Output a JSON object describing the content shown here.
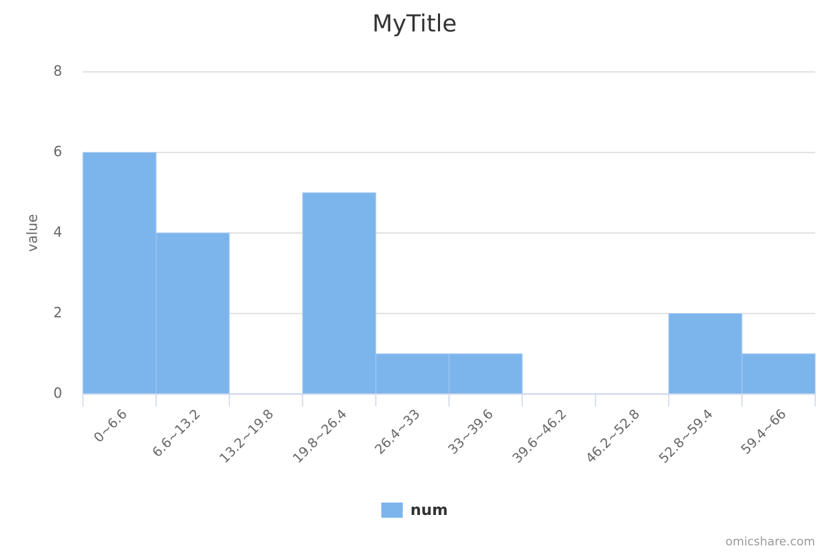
{
  "chart_data": {
    "type": "bar",
    "title": "MyTitle",
    "y_label": "value",
    "categories": [
      "0~6.6",
      "6.6~13.2",
      "13.2~19.8",
      "19.8~26.4",
      "26.4~33",
      "33~39.6",
      "39.6~46.2",
      "46.2~52.8",
      "52.8~59.4",
      "59.4~66"
    ],
    "series": [
      {
        "name": "num",
        "color": "#7cb5ec",
        "values": [
          6,
          4,
          0,
          5,
          1,
          1,
          0,
          0,
          2,
          1
        ]
      }
    ],
    "ylim": [
      0,
      8
    ],
    "yticks": [
      0,
      2,
      4,
      6,
      8
    ],
    "grid": true,
    "legend": "bottom",
    "credit": "omicshare.com"
  }
}
